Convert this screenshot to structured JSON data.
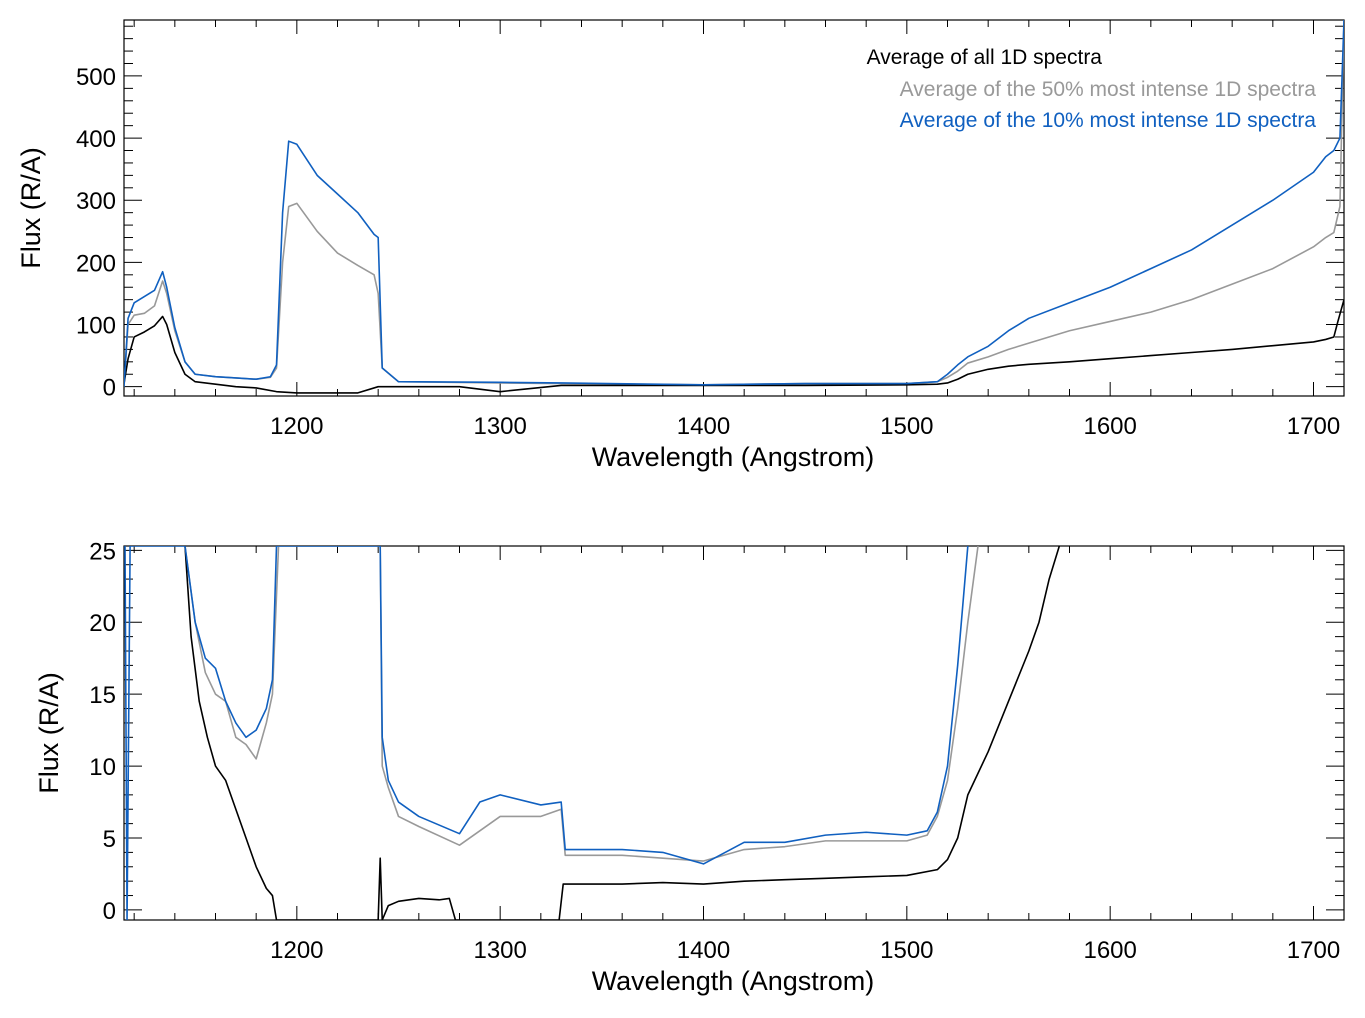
{
  "chart_data": [
    {
      "type": "line",
      "panel": "top",
      "xlabel": "Wavelength (Angstrom)",
      "ylabel": "Flux (R/A)",
      "xlim": [
        1115,
        1715
      ],
      "ylim": [
        -15,
        590
      ],
      "xticks": [
        1200,
        1300,
        1400,
        1500,
        1600,
        1700
      ],
      "yticks": [
        0,
        100,
        200,
        300,
        400,
        500
      ],
      "legend_position": "top-right",
      "series": [
        {
          "name": "Average of all 1D spectra",
          "color": "#000000",
          "x": [
            1115,
            1117,
            1120,
            1125,
            1130,
            1134,
            1136,
            1140,
            1145,
            1150,
            1160,
            1170,
            1180,
            1190,
            1200,
            1230,
            1240,
            1280,
            1300,
            1330,
            1340,
            1400,
            1450,
            1500,
            1515,
            1520,
            1525,
            1530,
            1540,
            1550,
            1560,
            1580,
            1600,
            1620,
            1640,
            1660,
            1680,
            1700,
            1706,
            1710,
            1712,
            1715
          ],
          "y": [
            5,
            45,
            80,
            88,
            98,
            113,
            100,
            55,
            20,
            8,
            4,
            0,
            -2,
            -8,
            -10,
            -10,
            0,
            0,
            -8,
            2,
            2,
            2,
            2,
            3,
            4,
            6,
            12,
            20,
            28,
            33,
            36,
            40,
            45,
            50,
            55,
            60,
            66,
            72,
            76,
            80,
            105,
            140
          ]
        },
        {
          "name": "Average of the 50% most intense 1D spectra",
          "color": "#999999",
          "x": [
            1115,
            1117,
            1120,
            1125,
            1130,
            1134,
            1136,
            1140,
            1145,
            1150,
            1160,
            1170,
            1180,
            1187,
            1190,
            1193,
            1196,
            1200,
            1210,
            1220,
            1230,
            1238,
            1240,
            1242,
            1250,
            1300,
            1330,
            1400,
            1450,
            1500,
            1515,
            1520,
            1525,
            1530,
            1540,
            1550,
            1560,
            1580,
            1600,
            1620,
            1640,
            1660,
            1680,
            1700,
            1706,
            1710,
            1713,
            1715
          ],
          "y": [
            0,
            100,
            115,
            118,
            130,
            170,
            150,
            90,
            40,
            20,
            16,
            14,
            12,
            15,
            30,
            200,
            290,
            295,
            250,
            215,
            195,
            180,
            150,
            30,
            8,
            6,
            5,
            3,
            5,
            5,
            8,
            15,
            25,
            38,
            48,
            60,
            70,
            90,
            105,
            120,
            140,
            165,
            190,
            225,
            240,
            248,
            290,
            590
          ]
        },
        {
          "name": "Average of the 10% most intense 1D spectra",
          "color": "#1060c0",
          "x": [
            1115,
            1117,
            1120,
            1125,
            1130,
            1134,
            1136,
            1140,
            1145,
            1150,
            1160,
            1170,
            1180,
            1187,
            1190,
            1193,
            1196,
            1200,
            1210,
            1220,
            1230,
            1238,
            1240,
            1242,
            1250,
            1300,
            1330,
            1400,
            1450,
            1500,
            1515,
            1520,
            1525,
            1530,
            1540,
            1550,
            1560,
            1580,
            1600,
            1620,
            1640,
            1660,
            1680,
            1700,
            1706,
            1710,
            1713,
            1715
          ],
          "y": [
            0,
            110,
            135,
            145,
            155,
            185,
            160,
            95,
            40,
            20,
            16,
            14,
            12,
            16,
            35,
            280,
            395,
            390,
            340,
            310,
            280,
            245,
            240,
            30,
            8,
            7,
            6,
            3,
            5,
            5,
            8,
            20,
            35,
            48,
            65,
            90,
            110,
            135,
            160,
            190,
            220,
            260,
            300,
            345,
            370,
            380,
            400,
            590
          ]
        }
      ]
    },
    {
      "type": "line",
      "panel": "bottom",
      "xlabel": "Wavelength (Angstrom)",
      "ylabel": "Flux (R/A)",
      "xlim": [
        1115,
        1715
      ],
      "ylim": [
        -0.7,
        25.3
      ],
      "xticks": [
        1200,
        1300,
        1400,
        1500,
        1600,
        1700
      ],
      "yticks": [
        0,
        5,
        10,
        15,
        20,
        25
      ],
      "series": [
        {
          "name": "Average of all 1D spectra",
          "color": "#000000",
          "x": [
            1145,
            1148,
            1152,
            1156,
            1160,
            1165,
            1170,
            1175,
            1180,
            1185,
            1188,
            1190,
            1240,
            1241,
            1242,
            1245,
            1250,
            1260,
            1270,
            1275,
            1278,
            1329,
            1331,
            1340,
            1360,
            1380,
            1400,
            1420,
            1440,
            1460,
            1480,
            1500,
            1515,
            1520,
            1525,
            1530,
            1540,
            1550,
            1560,
            1565,
            1570,
            1575
          ],
          "y": [
            25.3,
            19,
            14.5,
            12,
            10,
            9,
            7,
            5,
            3,
            1.5,
            1,
            -0.7,
            -0.7,
            3.6,
            -0.7,
            0.3,
            0.6,
            0.8,
            0.7,
            0.8,
            -0.7,
            -0.7,
            1.8,
            1.8,
            1.8,
            1.9,
            1.8,
            2,
            2.1,
            2.2,
            2.3,
            2.4,
            2.8,
            3.5,
            5,
            8,
            11,
            14.5,
            18,
            20,
            23,
            25.3
          ]
        },
        {
          "name": "Average of the 50% most intense 1D spectra",
          "color": "#999999",
          "x": [
            1145,
            1150,
            1155,
            1160,
            1165,
            1170,
            1175,
            1180,
            1185,
            1188,
            1191,
            1241,
            1242,
            1245,
            1250,
            1260,
            1280,
            1290,
            1300,
            1320,
            1330,
            1332,
            1340,
            1360,
            1380,
            1400,
            1420,
            1440,
            1460,
            1480,
            1500,
            1510,
            1515,
            1520,
            1525,
            1530,
            1535
          ],
          "y": [
            25.3,
            20,
            16.5,
            15,
            14.5,
            12,
            11.5,
            10.5,
            13,
            15,
            25.3,
            25.3,
            10,
            8.5,
            6.5,
            5.8,
            4.5,
            5.5,
            6.5,
            6.5,
            7,
            3.8,
            3.8,
            3.8,
            3.6,
            3.4,
            4.2,
            4.4,
            4.8,
            4.8,
            4.8,
            5.2,
            6.5,
            9,
            14,
            20,
            25.3
          ]
        },
        {
          "name": "Average of the 10% most intense 1D spectra",
          "color": "#1060c0",
          "x": [
            1115.5,
            1116.5,
            1118,
            1145,
            1150,
            1155,
            1160,
            1165,
            1170,
            1175,
            1180,
            1185,
            1188,
            1190,
            1241,
            1242,
            1245,
            1250,
            1260,
            1280,
            1290,
            1300,
            1320,
            1330,
            1332,
            1340,
            1360,
            1380,
            1400,
            1420,
            1440,
            1460,
            1480,
            1500,
            1510,
            1515,
            1520,
            1525,
            1530
          ],
          "y": [
            25.3,
            -0.7,
            25.3,
            25.3,
            20,
            17.5,
            16.8,
            14.5,
            13,
            12,
            12.5,
            14,
            16,
            25.3,
            25.3,
            12,
            9,
            7.5,
            6.5,
            5.3,
            7.5,
            8,
            7.3,
            7.5,
            4.2,
            4.2,
            4.2,
            4,
            3.2,
            4.7,
            4.7,
            5.2,
            5.4,
            5.2,
            5.5,
            6.8,
            10,
            17,
            25.3
          ]
        }
      ]
    }
  ]
}
